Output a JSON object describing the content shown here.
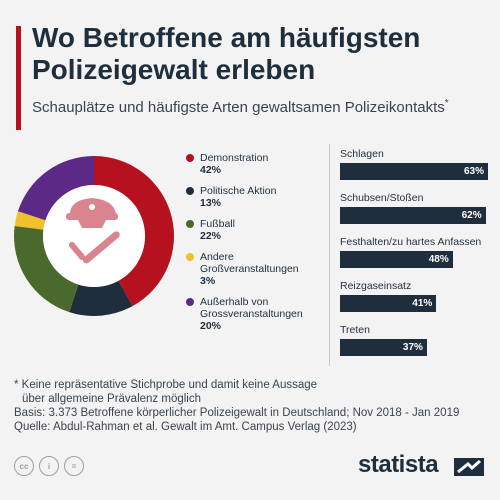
{
  "header": {
    "title": "Wo Betroffene am häufigsten Polizeigewalt erleben",
    "subtitle": "Schauplätze und häufigste Arten gewaltsamen Polizeikontakts",
    "subtitle_mark": "*"
  },
  "colors": {
    "accent": "#b5111f",
    "demonstration": "#b5111f",
    "politische_aktion": "#1f2e3d",
    "fussball": "#4a6a2d",
    "andere": "#f2c02a",
    "ausserhalb": "#5c2a86",
    "bars": "#1f2e3d",
    "icon": "#d9848e"
  },
  "chart_data": [
    {
      "type": "pie",
      "variant": "donut",
      "legend_placement": "right",
      "slices": [
        {
          "label": "Demonstration",
          "value": 42,
          "display": "42%"
        },
        {
          "label": "Politische Aktion",
          "value": 13,
          "display": "13%"
        },
        {
          "label": "Fußball",
          "value": 22,
          "display": "22%"
        },
        {
          "label": "Andere Großveranstaltungen",
          "value": 3,
          "display": "3%"
        },
        {
          "label": "Außerhalb von Grossveranstaltungen",
          "value": 20,
          "display": "20%"
        }
      ],
      "center_icon": "police-cap-and-baton-icon"
    },
    {
      "type": "bar",
      "orientation": "horizontal",
      "xlim": [
        0,
        100
      ],
      "grid": false,
      "categories": [
        "Schlagen",
        "Schubsen/Stoßen",
        "Festhalten/zu hartes Anfassen",
        "Reizgaseinsatz",
        "Treten"
      ],
      "values": [
        63,
        62,
        48,
        41,
        37
      ],
      "value_labels": [
        "63%",
        "62%",
        "48%",
        "41%",
        "37%"
      ]
    }
  ],
  "footnote": {
    "line1": "* Keine repräsentative Stichprobe und damit keine Aussage",
    "line2": "über allgemeine Prävalenz möglich",
    "basis": "Basis: 3.373 Betroffene körperlicher Polizeigewalt in Deutschland; Nov 2018 - Jan 2019",
    "quelle": "Quelle: Abdul-Rahman et al. Gewalt im Amt. Campus Verlag (2023)"
  },
  "branding": {
    "logo_text": "statista",
    "license_icons": [
      "cc-icon",
      "info-icon",
      "equals-icon"
    ]
  }
}
